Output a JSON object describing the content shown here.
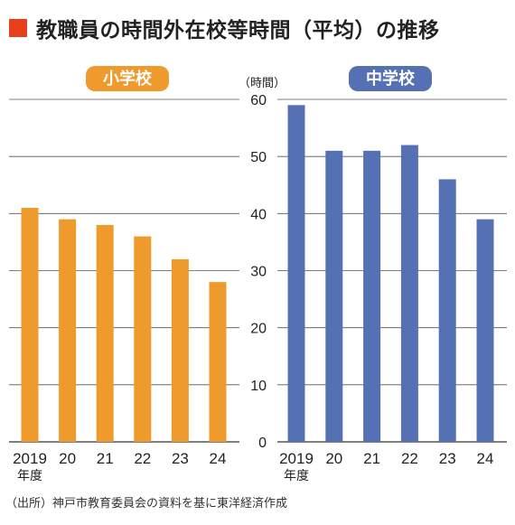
{
  "title": "教職員の時間外在校等時間（平均）の推移",
  "source": "（出所）神戸市教育委員会の資料を基に東洋経済作成",
  "colors": {
    "title_marker": "#e8401c",
    "elementary": "#ef9a2c",
    "junior_high": "#5670b4",
    "grid": "#555555"
  },
  "chart_data": [
    {
      "type": "bar",
      "panel_label": "小学校",
      "categories": [
        "2019",
        "20",
        "21",
        "22",
        "23",
        "24"
      ],
      "x_sublabel": "年度",
      "values": [
        41,
        39,
        38,
        36,
        32,
        28
      ],
      "ylim": [
        0,
        60
      ],
      "yticks": [
        0,
        10,
        20,
        30,
        40,
        50,
        60
      ],
      "show_ytick_labels": false,
      "color": "#ef9a2c",
      "grid": true
    },
    {
      "type": "bar",
      "panel_label": "中学校",
      "categories": [
        "2019",
        "20",
        "21",
        "22",
        "23",
        "24"
      ],
      "x_sublabel": "年度",
      "values": [
        59,
        51,
        51,
        52,
        46,
        39
      ],
      "ylim": [
        0,
        60
      ],
      "yticks": [
        0,
        10,
        20,
        30,
        40,
        50,
        60
      ],
      "show_ytick_labels": true,
      "ylabel": "（時間）",
      "color": "#5670b4",
      "grid": true
    }
  ]
}
